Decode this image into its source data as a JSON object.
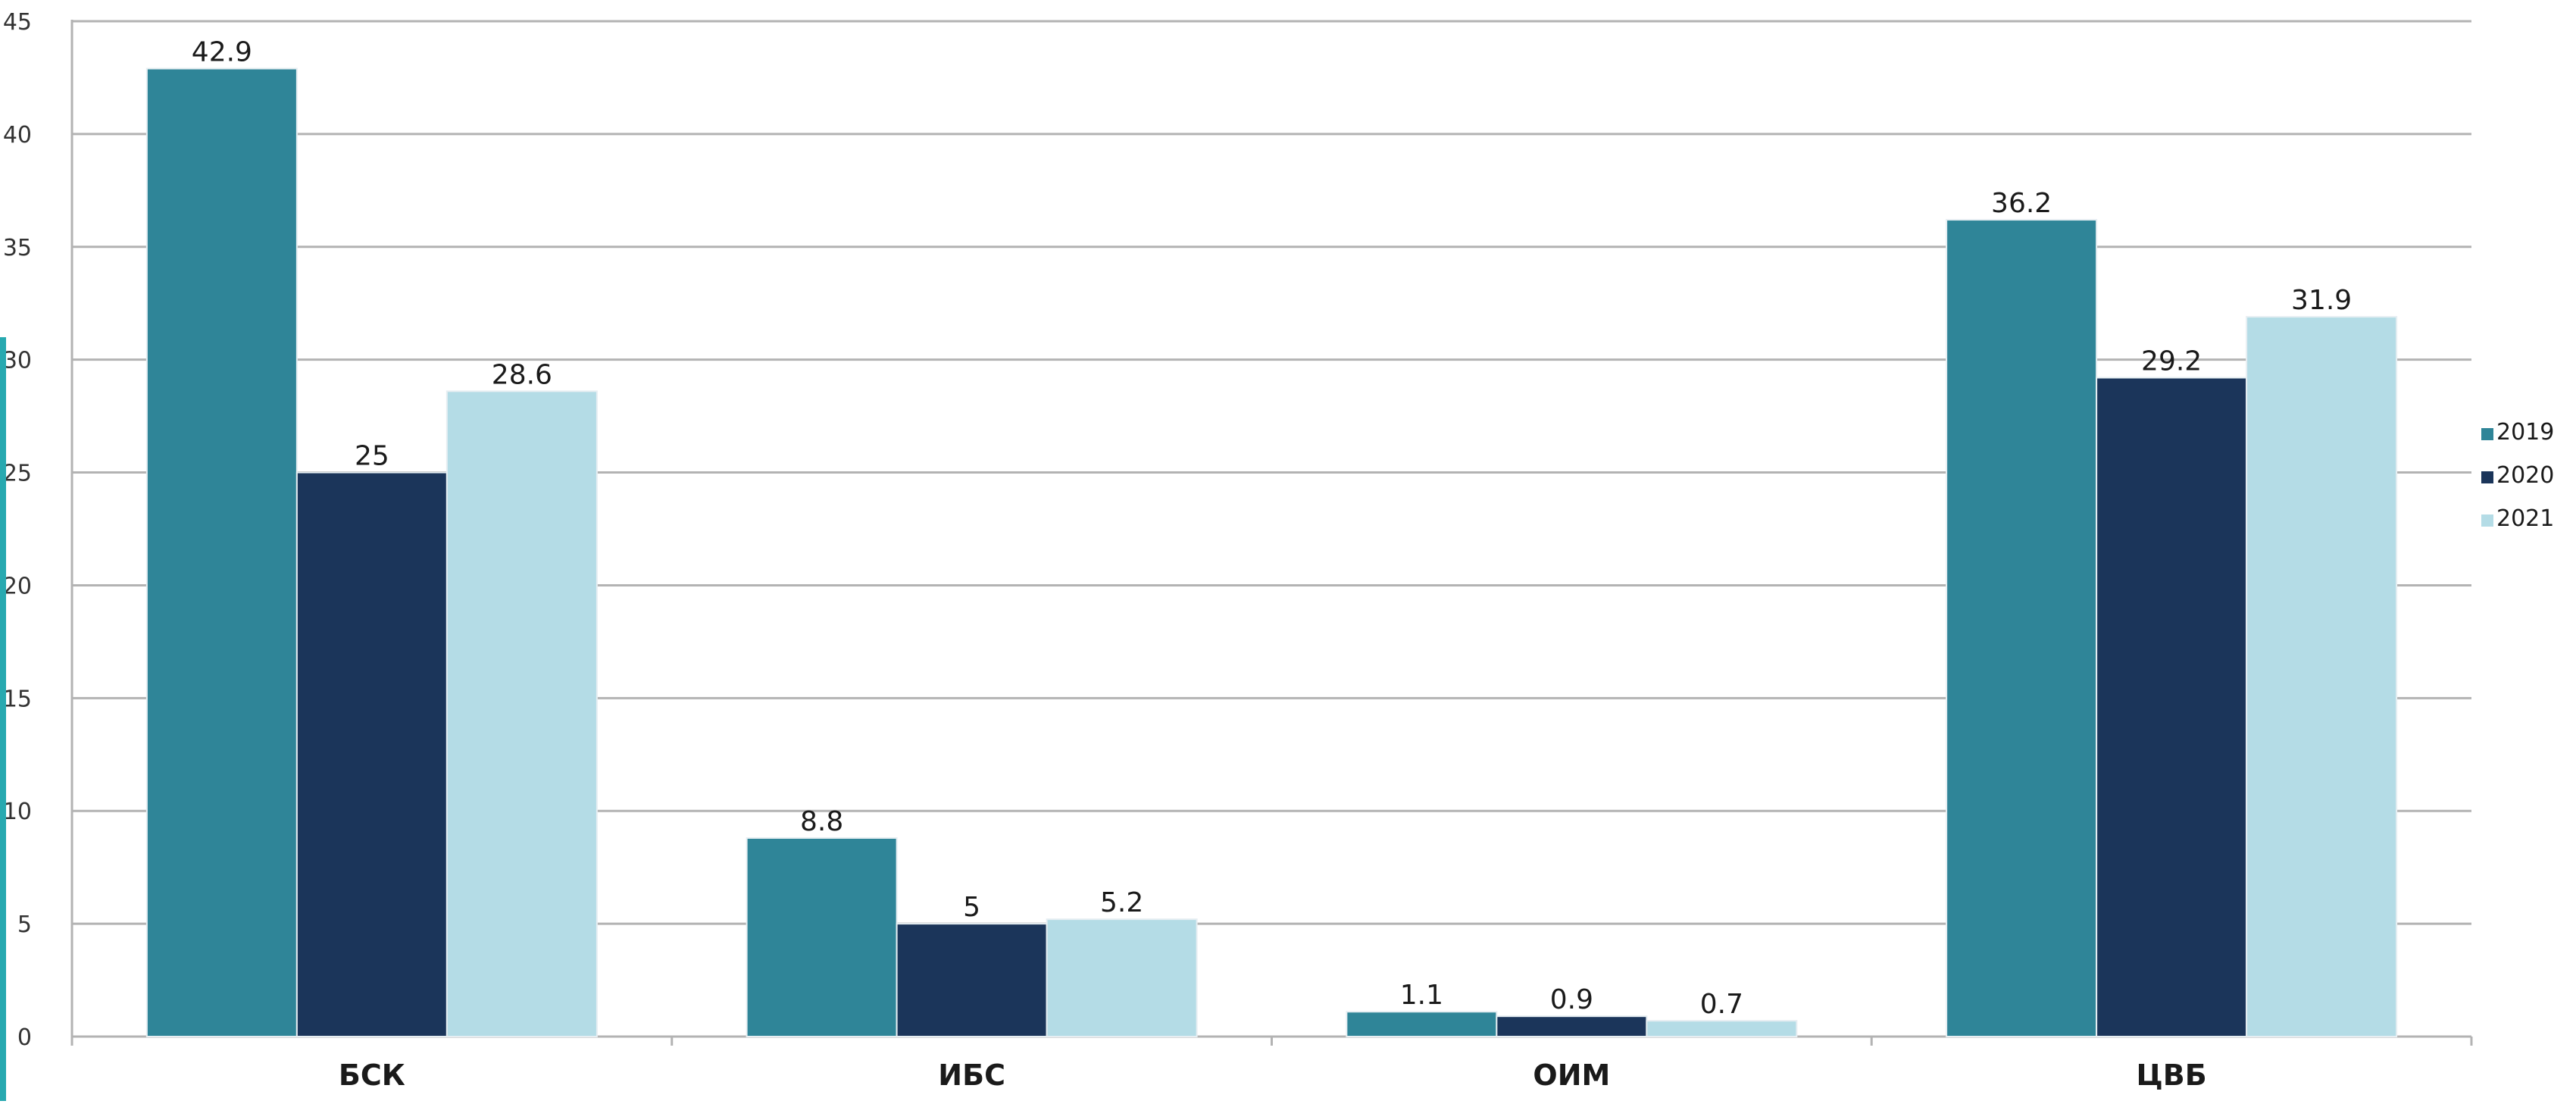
{
  "chart_data": {
    "type": "bar",
    "categories": [
      "БСК",
      "ИБС",
      "ОИМ",
      "ЦВБ"
    ],
    "series": [
      {
        "name": "2019",
        "values": [
          42.9,
          8.8,
          1.1,
          36.2
        ],
        "color": "#2f8598"
      },
      {
        "name": "2020",
        "values": [
          25,
          5,
          0.9,
          29.2
        ],
        "color": "#1b355a"
      },
      {
        "name": "2021",
        "values": [
          28.6,
          5.2,
          0.7,
          31.9
        ],
        "color": "#b4dce6"
      }
    ],
    "value_labels": [
      [
        "42.9",
        "8.8",
        "1.1",
        "36.2"
      ],
      [
        "25",
        "5",
        "0.9",
        "29.2"
      ],
      [
        "28.6",
        "5.2",
        "0.7",
        "31.9"
      ]
    ],
    "ylim": [
      0,
      45
    ],
    "yticks": [
      0,
      5,
      10,
      15,
      20,
      25,
      30,
      35,
      40,
      45
    ],
    "title": "",
    "xlabel": "",
    "ylabel": "",
    "grid": true,
    "legend_position": "right"
  }
}
